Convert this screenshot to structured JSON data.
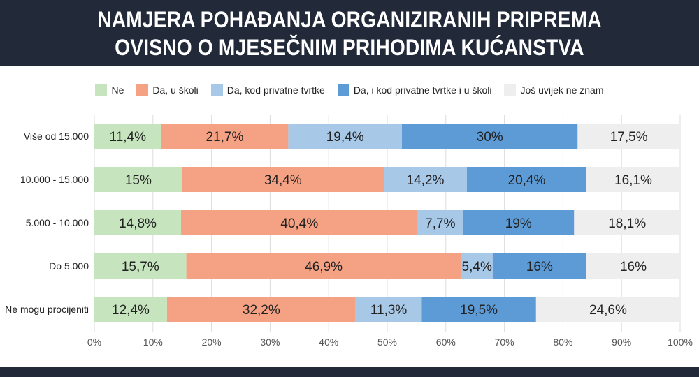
{
  "header": {
    "title": "NAMJERA POHAĐANJA ORGANIZIRANIH PRIPREMA OVISNO O MJESEČNIM PRIHODIMA KUĆANSTVA"
  },
  "colors": {
    "header_bg": "#222a3a",
    "ne": "#c6e5bf",
    "da_u_skoli": "#f5a183",
    "da_kod_privatne": "#a8c8e8",
    "da_i_kod_privatne": "#5d9bd6",
    "jos_uvijek": "#eeeeee"
  },
  "chart_data": {
    "type": "bar",
    "orientation": "horizontal",
    "stacked": true,
    "title": "NAMJERA POHAĐANJA ORGANIZIRANIH PRIPREMA OVISNO O MJESEČNIM PRIHODIMA KUĆANSTVA",
    "categories": [
      "Više od 15.000",
      "10.000 - 15.000",
      "5.000 - 10.000",
      "Do 5.000",
      "Ne mogu procijeniti"
    ],
    "series": [
      {
        "name": "Ne",
        "color": "#c6e5bf",
        "values": [
          11.4,
          15,
          14.8,
          15.7,
          12.4
        ],
        "labels": [
          "11,4%",
          "15%",
          "14,8%",
          "15,7%",
          "12,4%"
        ]
      },
      {
        "name": "Da, u školi",
        "color": "#f5a183",
        "values": [
          21.7,
          34.4,
          40.4,
          46.9,
          32.2
        ],
        "labels": [
          "21,7%",
          "34,4%",
          "40,4%",
          "46,9%",
          "32,2%"
        ]
      },
      {
        "name": "Da, kod privatne tvrtke",
        "color": "#a8c8e8",
        "values": [
          19.4,
          14.2,
          7.7,
          5.4,
          11.3
        ],
        "labels": [
          "19,4%",
          "14,2%",
          "7,7%",
          "5,4%",
          "11,3%"
        ]
      },
      {
        "name": "Da, i kod privatne tvrtke i u školi",
        "color": "#5d9bd6",
        "values": [
          30,
          20.4,
          19,
          16,
          19.5
        ],
        "labels": [
          "30%",
          "20,4%",
          "19%",
          "16%",
          "19,5%"
        ]
      },
      {
        "name": "Još uvijek ne znam",
        "color": "#eeeeee",
        "values": [
          17.5,
          16.1,
          18.1,
          16,
          24.6
        ],
        "labels": [
          "17,5%",
          "16,1%",
          "18,1%",
          "16%",
          "24,6%"
        ]
      }
    ],
    "xlim": [
      0,
      100
    ],
    "xticks": [
      "0%",
      "10%",
      "20%",
      "30%",
      "40%",
      "50%",
      "60%",
      "70%",
      "80%",
      "90%",
      "100%"
    ],
    "grid": true,
    "legend_position": "top"
  }
}
